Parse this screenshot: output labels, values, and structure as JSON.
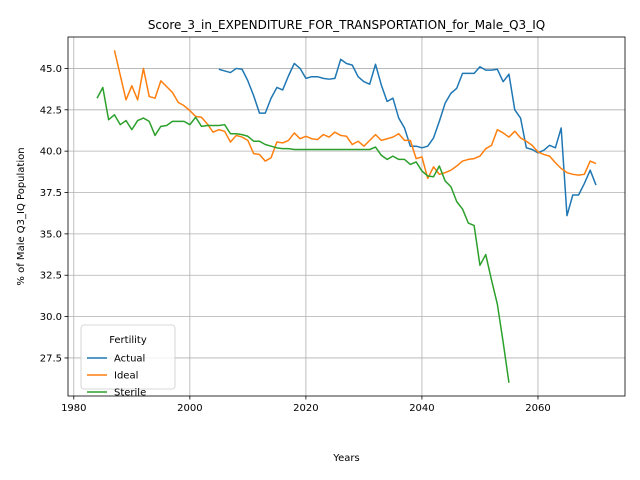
{
  "chart_data": {
    "type": "line",
    "title": "Score_3_in_EXPENDITURE_FOR_TRANSPORTATION_for_Male_Q3_IQ",
    "xlabel": "Years",
    "ylabel": "% of Male Q3_IQ Population",
    "xlim": [
      1979,
      2075
    ],
    "ylim": [
      25.2,
      46.9
    ],
    "xticks": [
      1980,
      2000,
      2020,
      2040,
      2060
    ],
    "yticks": [
      27.5,
      30.0,
      32.5,
      35.0,
      37.5,
      40.0,
      42.5,
      45.0
    ],
    "ytick_labels": [
      "27.5",
      "30.0",
      "32.5",
      "35.0",
      "37.5",
      "40.0",
      "42.5",
      "45.0"
    ],
    "grid": true,
    "legend": {
      "title": "Fertility",
      "placement": "lower-left"
    },
    "series": [
      {
        "name": "Actual",
        "color": "#1f77b4",
        "x": [
          2005,
          2006,
          2007,
          2008,
          2009,
          2010,
          2011,
          2012,
          2013,
          2014,
          2015,
          2016,
          2017,
          2018,
          2019,
          2020,
          2021,
          2022,
          2023,
          2024,
          2025,
          2026,
          2027,
          2028,
          2029,
          2030,
          2031,
          2032,
          2033,
          2034,
          2035,
          2036,
          2037,
          2038,
          2039,
          2040,
          2041,
          2042,
          2043,
          2044,
          2045,
          2046,
          2047,
          2048,
          2049,
          2050,
          2051,
          2052,
          2053,
          2054,
          2055,
          2056,
          2057,
          2058,
          2059,
          2060,
          2061,
          2062,
          2063,
          2064,
          2065,
          2066,
          2067,
          2068,
          2069,
          2070
        ],
        "y": [
          44.95,
          44.85,
          44.75,
          45.0,
          44.95,
          44.25,
          43.35,
          42.3,
          42.3,
          43.2,
          43.85,
          43.7,
          44.55,
          45.3,
          45.0,
          44.4,
          44.5,
          44.5,
          44.4,
          44.35,
          44.4,
          45.55,
          45.3,
          45.2,
          44.5,
          44.2,
          44.05,
          45.25,
          44.0,
          43.0,
          43.2,
          42.0,
          41.4,
          40.3,
          40.3,
          40.2,
          40.3,
          40.8,
          41.8,
          42.9,
          43.5,
          43.8,
          44.7,
          44.7,
          44.7,
          45.1,
          44.9,
          44.9,
          44.95,
          44.2,
          44.65,
          42.5,
          42.0,
          40.2,
          40.1,
          39.9,
          40.05,
          40.35,
          40.2,
          41.4,
          36.1,
          37.35,
          37.35,
          38.05,
          38.85,
          37.95
        ]
      },
      {
        "name": "Ideal",
        "color": "#ff7f0e",
        "x": [
          1987,
          1988,
          1989,
          1990,
          1991,
          1992,
          1993,
          1994,
          1995,
          1996,
          1997,
          1998,
          1999,
          2000,
          2001,
          2002,
          2003,
          2004,
          2005,
          2006,
          2007,
          2008,
          2009,
          2010,
          2011,
          2012,
          2013,
          2014,
          2015,
          2016,
          2017,
          2018,
          2019,
          2020,
          2021,
          2022,
          2023,
          2024,
          2025,
          2026,
          2027,
          2028,
          2029,
          2030,
          2031,
          2032,
          2033,
          2034,
          2035,
          2036,
          2037,
          2038,
          2039,
          2040,
          2041,
          2042,
          2043,
          2044,
          2045,
          2046,
          2047,
          2048,
          2049,
          2050,
          2051,
          2052,
          2053,
          2054,
          2055,
          2056,
          2057,
          2058,
          2059,
          2060,
          2061,
          2062,
          2063,
          2064,
          2065,
          2066,
          2067,
          2068,
          2069,
          2070
        ],
        "y": [
          46.1,
          44.6,
          43.1,
          43.95,
          43.1,
          45.0,
          43.3,
          43.2,
          44.25,
          43.9,
          43.55,
          42.95,
          42.75,
          42.45,
          42.1,
          42.05,
          41.65,
          41.15,
          41.3,
          41.2,
          40.55,
          40.95,
          40.85,
          40.65,
          39.85,
          39.8,
          39.4,
          39.6,
          40.55,
          40.5,
          40.65,
          41.1,
          40.75,
          40.9,
          40.75,
          40.7,
          41.0,
          40.85,
          41.15,
          40.95,
          40.9,
          40.4,
          40.6,
          40.3,
          40.65,
          41.0,
          40.65,
          40.75,
          40.85,
          41.05,
          40.65,
          40.65,
          39.55,
          39.65,
          38.35,
          39.05,
          38.6,
          38.7,
          38.85,
          39.1,
          39.4,
          39.5,
          39.55,
          39.7,
          40.15,
          40.35,
          41.3,
          41.1,
          40.85,
          41.2,
          40.8,
          40.6,
          40.35,
          39.95,
          39.8,
          39.7,
          39.3,
          38.95,
          38.7,
          38.6,
          38.55,
          38.6,
          39.4,
          39.25
        ]
      },
      {
        "name": "Sterile",
        "color": "#2ca02c",
        "x": [
          1984,
          1985,
          1986,
          1987,
          1988,
          1989,
          1990,
          1991,
          1992,
          1993,
          1994,
          1995,
          1996,
          1997,
          1998,
          1999,
          2000,
          2001,
          2002,
          2003,
          2004,
          2005,
          2006,
          2007,
          2008,
          2009,
          2010,
          2011,
          2012,
          2013,
          2014,
          2015,
          2016,
          2017,
          2018,
          2019,
          2020,
          2021,
          2022,
          2023,
          2024,
          2025,
          2026,
          2027,
          2028,
          2029,
          2030,
          2031,
          2032,
          2033,
          2034,
          2035,
          2036,
          2037,
          2038,
          2039,
          2040,
          2041,
          2042,
          2043,
          2044,
          2045,
          2046,
          2047,
          2048,
          2049,
          2050,
          2051,
          2052,
          2053,
          2054,
          2055
        ],
        "y": [
          43.2,
          43.85,
          41.9,
          42.2,
          41.6,
          41.85,
          41.3,
          41.85,
          42.0,
          41.8,
          40.95,
          41.5,
          41.55,
          41.8,
          41.8,
          41.8,
          41.6,
          42.05,
          41.5,
          41.55,
          41.55,
          41.55,
          41.6,
          41.05,
          41.05,
          41.0,
          40.9,
          40.6,
          40.6,
          40.4,
          40.3,
          40.2,
          40.15,
          40.15,
          40.1,
          40.1,
          40.1,
          40.1,
          40.1,
          40.1,
          40.1,
          40.1,
          40.1,
          40.1,
          40.1,
          40.1,
          40.1,
          40.1,
          40.25,
          39.75,
          39.5,
          39.7,
          39.5,
          39.5,
          39.2,
          39.35,
          38.8,
          38.5,
          38.45,
          39.1,
          38.2,
          37.85,
          36.95,
          36.5,
          35.65,
          35.5,
          33.1,
          33.75,
          32.2,
          30.75,
          28.45,
          26.0
        ]
      }
    ]
  }
}
